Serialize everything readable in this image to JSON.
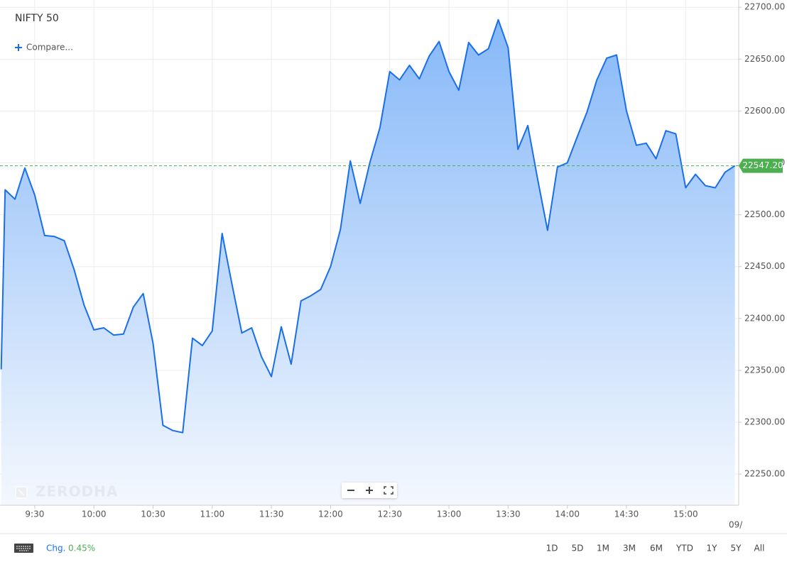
{
  "chart_data": {
    "type": "area",
    "title": "NIFTY 50",
    "color": "#1a6fe8",
    "grid": true,
    "x": [
      553,
      555,
      560,
      565,
      570,
      575,
      580,
      585,
      590,
      595,
      600,
      605,
      610,
      615,
      620,
      625,
      630,
      635,
      640,
      645,
      650,
      655,
      660,
      665,
      670,
      675,
      680,
      685,
      690,
      695,
      700,
      705,
      710,
      715,
      720,
      725,
      730,
      735,
      740,
      745,
      750,
      755,
      760,
      765,
      770,
      775,
      780,
      785,
      790,
      795,
      800,
      805,
      810,
      815,
      820,
      825,
      830,
      835,
      840,
      845,
      850,
      855,
      860,
      865,
      870,
      875,
      880,
      885,
      890,
      895,
      900,
      905,
      910,
      915,
      920,
      925
    ],
    "values": [
      22351,
      22524,
      22515,
      22545,
      22519,
      22480,
      22479,
      22475,
      22447,
      22413,
      22389,
      22391,
      22384,
      22385,
      22411,
      22424,
      22376,
      22297,
      22292,
      22290,
      22381,
      22374,
      22388,
      22482,
      22433,
      22386,
      22391,
      22363,
      22344,
      22392,
      22356,
      22417,
      22422,
      22428,
      22450,
      22486,
      22552,
      22511,
      22551,
      22584,
      22638,
      22630,
      22644,
      22631,
      22653,
      22667,
      22638,
      22620,
      22666,
      22654,
      22660,
      22688,
      22661,
      22563,
      22586,
      22534,
      22485,
      22546,
      22550,
      22575,
      22599,
      22630,
      22651,
      22654,
      22600,
      22567,
      22569,
      22554,
      22581,
      22578,
      22526,
      22539,
      22528,
      22526,
      22541,
      22547.2
    ],
    "xlim": [
      552.4,
      926.9
    ],
    "xticks": [
      {
        "value": 570,
        "label": "9:30"
      },
      {
        "value": 600,
        "label": "10:00"
      },
      {
        "value": 630,
        "label": "10:30"
      },
      {
        "value": 660,
        "label": "11:00"
      },
      {
        "value": 690,
        "label": "11:30"
      },
      {
        "value": 720,
        "label": "12:00"
      },
      {
        "value": 750,
        "label": "12:30"
      },
      {
        "value": 780,
        "label": "13:00"
      },
      {
        "value": 810,
        "label": "13:30"
      },
      {
        "value": 840,
        "label": "14:00"
      },
      {
        "value": 870,
        "label": "14:30"
      },
      {
        "value": 900,
        "label": "15:00"
      }
    ],
    "x_edge_label": "09/",
    "ylim": [
      22220,
      22707
    ],
    "yticks": [
      {
        "value": 22250,
        "label": "22250.00"
      },
      {
        "value": 22300,
        "label": "22300.00"
      },
      {
        "value": 22350,
        "label": "22350.00"
      },
      {
        "value": 22400,
        "label": "22400.00"
      },
      {
        "value": 22450,
        "label": "22450.00"
      },
      {
        "value": 22500,
        "label": "22500.00"
      },
      {
        "value": 22550,
        "label": "22550.00"
      },
      {
        "value": 22600,
        "label": "22600.00"
      },
      {
        "value": 22650,
        "label": "22650.00"
      },
      {
        "value": 22700,
        "label": "22700.00"
      }
    ],
    "reference_line": {
      "value": 22547.2,
      "label": "22547.20",
      "color": "#4caf50"
    }
  },
  "compare_button": "Compare...",
  "watermark": "ZERODHA",
  "footer": {
    "change_label": "Chg.",
    "change_value": "0.45%",
    "ranges": [
      "1D",
      "5D",
      "1M",
      "3M",
      "6M",
      "YTD",
      "1Y",
      "5Y",
      "All"
    ]
  }
}
